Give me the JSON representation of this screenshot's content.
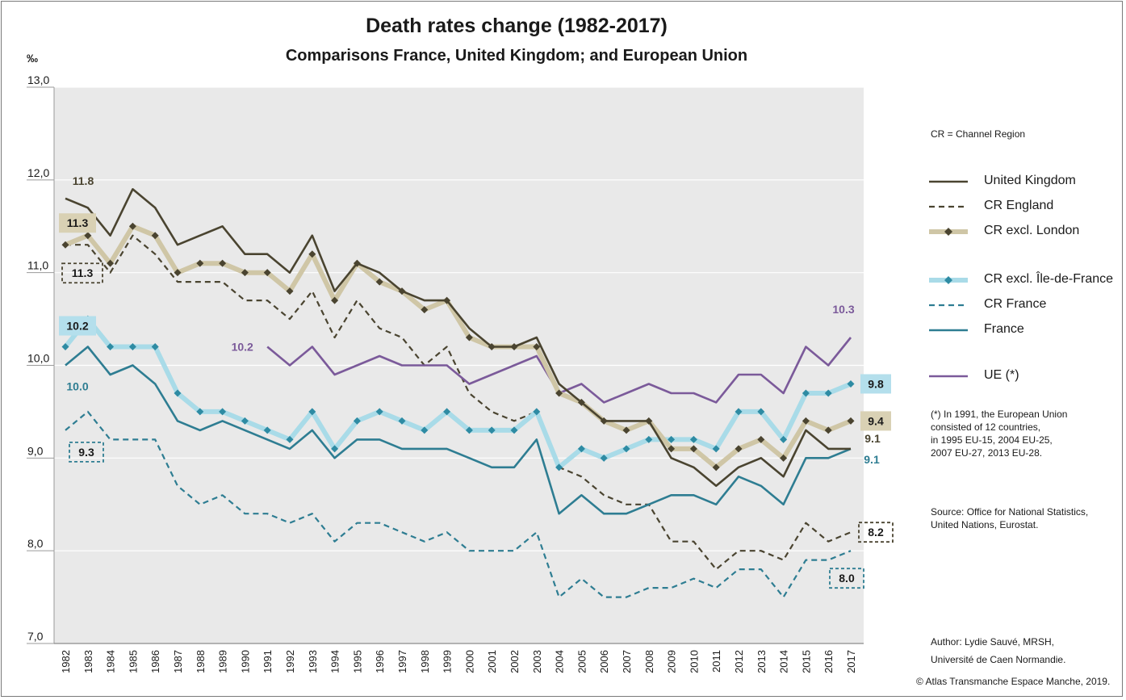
{
  "title": "Death rates change (1982-2017)",
  "subtitle": "Comparisons France, United Kingdom; and European Union",
  "unit_label": "‰",
  "cr_note": "CR = Channel Region",
  "eu_note_lines": [
    "(*) In 1991, the European Union",
    "consisted of 12 countries,",
    "in 1995 EU-15, 2004 EU-25,",
    "2007 EU-27, 2013 EU-28."
  ],
  "source_lines": [
    "Source: Office for National Statistics,",
    "United Nations, Eurostat."
  ],
  "author_lines": [
    "Author: Lydie Sauvé, MRSH,",
    "Université de Caen Normandie."
  ],
  "copyright": "© Atlas Transmanche Espace Manche, 2019.",
  "chart_data": {
    "type": "line",
    "title": "Death rates change (1982-2017)",
    "subtitle": "Comparisons France, United Kingdom; and European Union",
    "ylabel": "‰",
    "ylim": [
      7,
      13
    ],
    "yticks": [
      "7,0",
      "8,0",
      "9,0",
      "10,0",
      "11,0",
      "12,0",
      "13,0"
    ],
    "grid": "horizontal",
    "legend_position": "right",
    "x": [
      "1982",
      "1983",
      "1984",
      "1985",
      "1986",
      "1987",
      "1988",
      "1989",
      "1990",
      "1991",
      "1992",
      "1993",
      "1994",
      "1995",
      "1996",
      "1997",
      "1998",
      "1999",
      "2000",
      "2001",
      "2002",
      "2003",
      "2004",
      "2005",
      "2006",
      "2007",
      "2008",
      "2009",
      "2010",
      "2011",
      "2012",
      "2013",
      "2014",
      "2015",
      "2016",
      "2017"
    ],
    "series": [
      {
        "key": "uk",
        "name": "United Kingdom",
        "color": "#4a4430",
        "style": "solid",
        "values": [
          11.8,
          11.7,
          11.4,
          11.9,
          11.7,
          11.3,
          11.4,
          11.5,
          11.2,
          11.2,
          11.0,
          11.4,
          10.8,
          11.1,
          11.0,
          10.8,
          10.7,
          10.7,
          10.4,
          10.2,
          10.2,
          10.3,
          9.8,
          9.6,
          9.4,
          9.4,
          9.4,
          9.0,
          8.9,
          8.7,
          8.9,
          9.0,
          8.8,
          9.3,
          9.1,
          9.1
        ]
      },
      {
        "key": "cr_england",
        "name": "CR England",
        "color": "#4a4430",
        "style": "dashed",
        "values": [
          11.3,
          11.3,
          11.0,
          11.4,
          11.2,
          10.9,
          10.9,
          10.9,
          10.7,
          10.7,
          10.5,
          10.8,
          10.3,
          10.7,
          10.4,
          10.3,
          10.0,
          10.2,
          9.7,
          9.5,
          9.4,
          9.5,
          8.9,
          8.8,
          8.6,
          8.5,
          8.5,
          8.1,
          8.1,
          7.8,
          8.0,
          8.0,
          7.9,
          8.3,
          8.1,
          8.2
        ]
      },
      {
        "key": "cr_excl_london",
        "name": "CR excl. London",
        "color": "#cfc6a6",
        "marker_color": "#4a4430",
        "style": "thick",
        "values": [
          11.3,
          11.4,
          11.1,
          11.5,
          11.4,
          11.0,
          11.1,
          11.1,
          11.0,
          11.0,
          10.8,
          11.2,
          10.7,
          11.1,
          10.9,
          10.8,
          10.6,
          10.7,
          10.3,
          10.2,
          10.2,
          10.2,
          9.7,
          9.6,
          9.4,
          9.3,
          9.4,
          9.1,
          9.1,
          8.9,
          9.1,
          9.2,
          9.0,
          9.4,
          9.3,
          9.4
        ]
      },
      {
        "key": "cr_excl_idf",
        "name": "CR excl. Île-de-France",
        "color": "#a9dbe8",
        "marker_color": "#2e8ba3",
        "style": "thick",
        "values": [
          10.2,
          10.5,
          10.2,
          10.2,
          10.2,
          9.7,
          9.5,
          9.5,
          9.4,
          9.3,
          9.2,
          9.5,
          9.1,
          9.4,
          9.5,
          9.4,
          9.3,
          9.5,
          9.3,
          9.3,
          9.3,
          9.5,
          8.9,
          9.1,
          9.0,
          9.1,
          9.2,
          9.2,
          9.2,
          9.1,
          9.5,
          9.5,
          9.2,
          9.7,
          9.7,
          9.8
        ]
      },
      {
        "key": "cr_france",
        "name": "CR France",
        "color": "#2e7d92",
        "style": "dashed",
        "values": [
          9.3,
          9.5,
          9.2,
          9.2,
          9.2,
          8.7,
          8.5,
          8.6,
          8.4,
          8.4,
          8.3,
          8.4,
          8.1,
          8.3,
          8.3,
          8.2,
          8.1,
          8.2,
          8.0,
          8.0,
          8.0,
          8.2,
          7.5,
          7.7,
          7.5,
          7.5,
          7.6,
          7.6,
          7.7,
          7.6,
          7.8,
          7.8,
          7.5,
          7.9,
          7.9,
          8.0
        ]
      },
      {
        "key": "france",
        "name": "France",
        "color": "#2e7d92",
        "style": "solid",
        "values": [
          10.0,
          10.2,
          9.9,
          10.0,
          9.8,
          9.4,
          9.3,
          9.4,
          9.3,
          9.2,
          9.1,
          9.3,
          9.0,
          9.2,
          9.2,
          9.1,
          9.1,
          9.1,
          9.0,
          8.9,
          8.9,
          9.2,
          8.4,
          8.6,
          8.4,
          8.4,
          8.5,
          8.6,
          8.6,
          8.5,
          8.8,
          8.7,
          8.5,
          9.0,
          9.0,
          9.1
        ]
      },
      {
        "key": "ue",
        "name": "UE (*)",
        "color": "#7b5a9a",
        "style": "solid",
        "values": [
          null,
          null,
          null,
          null,
          null,
          null,
          null,
          null,
          null,
          10.2,
          10.0,
          10.2,
          9.9,
          10.0,
          10.1,
          10.0,
          10.0,
          10.0,
          9.8,
          9.9,
          10.0,
          10.1,
          9.7,
          9.8,
          9.6,
          9.7,
          9.8,
          9.7,
          9.7,
          9.6,
          9.9,
          9.9,
          9.7,
          10.2,
          10.0,
          10.3
        ]
      }
    ],
    "annotations": [
      {
        "text": "11.8",
        "series": "uk",
        "year": "1982",
        "style": "plain",
        "color": "#4a4430"
      },
      {
        "text": "11.3",
        "series": "cr_excl_london",
        "year": "1982",
        "style": "filled",
        "fill": "#d9d1b4"
      },
      {
        "text": "11.3",
        "series": "cr_england",
        "year": "1982",
        "style": "dashed-box",
        "stroke": "#4a4430"
      },
      {
        "text": "10.2",
        "series": "cr_excl_idf",
        "year": "1982",
        "style": "filled",
        "fill": "#b4dfec"
      },
      {
        "text": "10.0",
        "series": "france",
        "year": "1982",
        "style": "plain",
        "color": "#2e7d92"
      },
      {
        "text": "9.3",
        "series": "cr_france",
        "year": "1982",
        "style": "dashed-box",
        "stroke": "#2e7d92"
      },
      {
        "text": "10.2",
        "series": "ue",
        "year": "1991",
        "style": "plain",
        "color": "#7b5a9a"
      },
      {
        "text": "10.3",
        "series": "ue",
        "year": "2017",
        "style": "plain",
        "color": "#7b5a9a"
      },
      {
        "text": "9.8",
        "series": "cr_excl_idf",
        "year": "2017",
        "style": "filled",
        "fill": "#b4dfec"
      },
      {
        "text": "9.4",
        "series": "cr_excl_london",
        "year": "2017",
        "style": "filled",
        "fill": "#d9d1b4"
      },
      {
        "text": "9.1",
        "series": "uk",
        "year": "2017",
        "style": "plain",
        "color": "#4a4430"
      },
      {
        "text": "9.1",
        "series": "france",
        "year": "2017",
        "style": "plain",
        "color": "#2e7d92"
      },
      {
        "text": "8.2",
        "series": "cr_england",
        "year": "2017",
        "style": "dashed-box",
        "stroke": "#4a4430"
      },
      {
        "text": "8.0",
        "series": "cr_france",
        "year": "2017",
        "style": "dashed-box",
        "stroke": "#2e7d92"
      }
    ]
  }
}
